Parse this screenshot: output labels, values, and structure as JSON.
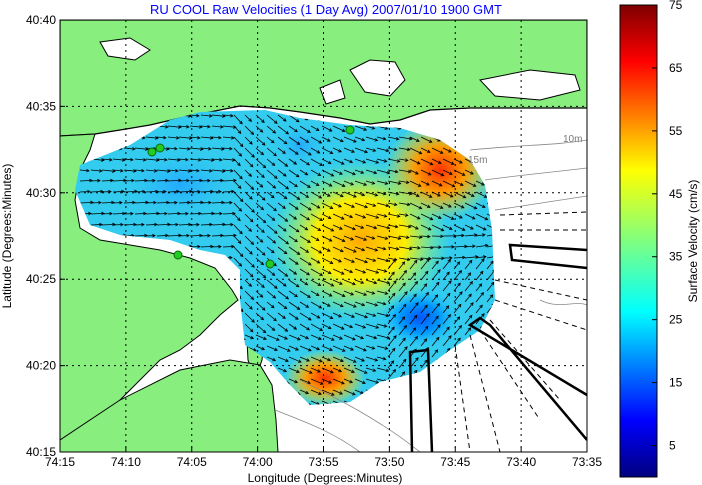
{
  "chart_data": {
    "type": "heatmap",
    "title": "RU COOL Raw Velocities (1 Day Avg) 2007/01/10 1900 GMT",
    "xlabel": "Longitude (Degrees:Minutes)",
    "ylabel": "Latitude (Degrees:Minutes)",
    "x_ticks": [
      "74:15",
      "74:10",
      "74:05",
      "74:00",
      "73:55",
      "73:50",
      "73:45",
      "73:40",
      "73:35"
    ],
    "y_ticks": [
      "40:40",
      "40:35",
      "40:30",
      "40:25",
      "40:20",
      "40:15"
    ],
    "xlim_minutes_west": [
      15,
      -25
    ],
    "ylim_minutes_north": [
      15,
      40
    ],
    "grid": true,
    "colorbar": {
      "label": "Surface Velocity (cm/s)",
      "range": [
        0,
        75
      ],
      "ticks": [
        5,
        15,
        25,
        35,
        45,
        55,
        65,
        75
      ],
      "colormap": "jet"
    },
    "depth_labels": [
      "10m",
      "15m"
    ],
    "colors": {
      "land": "#88ee7e",
      "title": "#0000ff",
      "station": "#22cc22"
    },
    "velocity_field": [
      {
        "lon": "74:11",
        "lat": "40:29",
        "speed": 16
      },
      {
        "lon": "74:06",
        "lat": "40:28",
        "speed": 12
      },
      {
        "lon": "74:02",
        "lat": "40:32",
        "speed": 18
      },
      {
        "lon": "73:59",
        "lat": "40:25",
        "speed": 30
      },
      {
        "lon": "73:55",
        "lat": "40:29",
        "speed": 40
      },
      {
        "lon": "73:53",
        "lat": "40:26",
        "speed": 36
      },
      {
        "lon": "73:46",
        "lat": "40:31",
        "speed": 55
      },
      {
        "lon": "73:44",
        "lat": "40:32",
        "speed": 62
      },
      {
        "lon": "73:48",
        "lat": "40:26",
        "speed": 28
      },
      {
        "lon": "73:49",
        "lat": "40:22",
        "speed": 6
      },
      {
        "lon": "73:53",
        "lat": "40:19",
        "speed": 30
      },
      {
        "lon": "73:56",
        "lat": "40:18",
        "speed": 60
      }
    ]
  }
}
